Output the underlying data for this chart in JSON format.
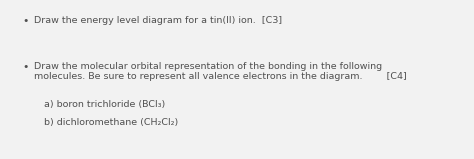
{
  "background_color": "#f2f2f2",
  "bullet1": "Draw the energy level diagram for a tin(II) ion.  [C3]",
  "bullet2_line1": "Draw the molecular orbital representation of the bonding in the following",
  "bullet2_line2": "molecules. Be sure to represent all valence electrons in the diagram.        [C4]",
  "sub_a": "a) boron trichloride (BCl₃)",
  "sub_b": "b) dichloromethane (CH₂Cl₂)",
  "text_color": "#505050",
  "font_size": 6.8,
  "bullet_symbol": "•"
}
